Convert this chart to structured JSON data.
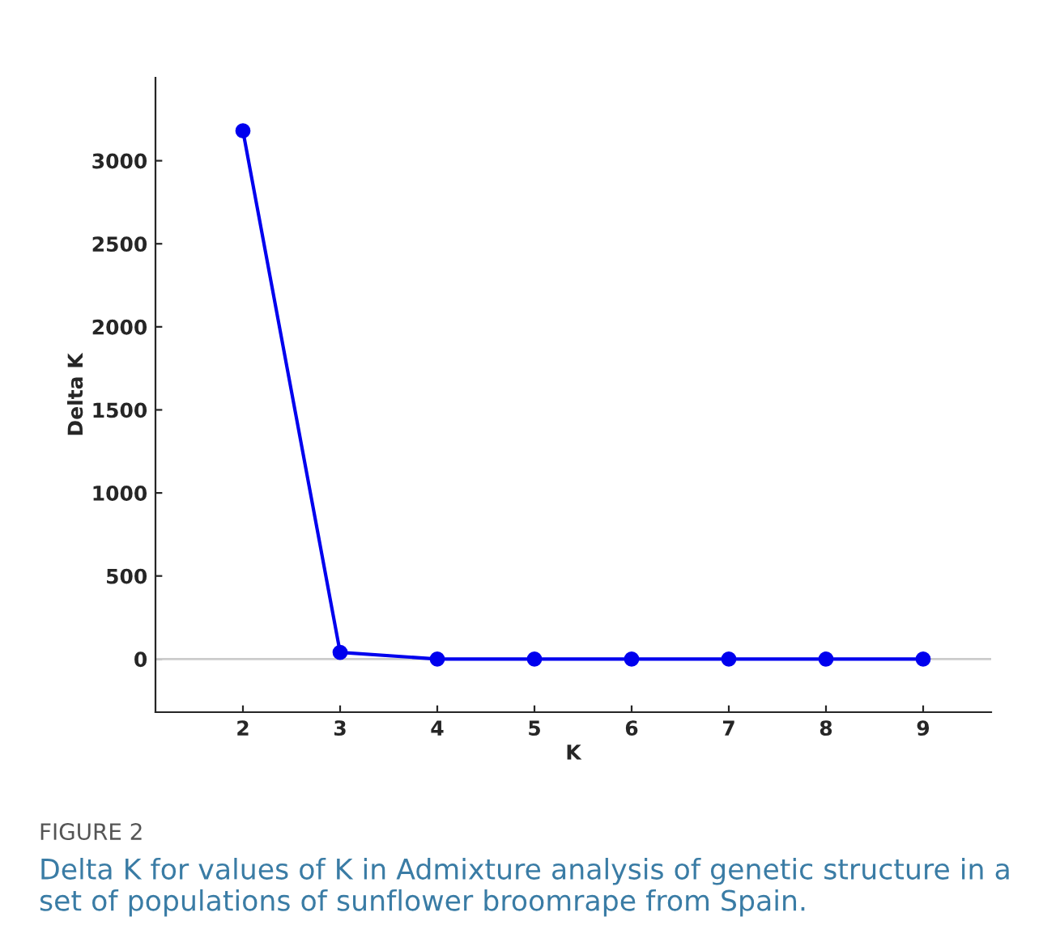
{
  "chart_data": {
    "type": "line",
    "xlabel": "K",
    "ylabel": "Delta K",
    "x": [
      2,
      3,
      4,
      5,
      6,
      7,
      8,
      9
    ],
    "series": [
      {
        "color": "#0000ee",
        "values": [
          3180,
          40,
          0,
          0,
          0,
          0,
          0,
          0
        ]
      }
    ],
    "xlim": [
      1.1,
      9.7
    ],
    "xticks": [
      2,
      3,
      4,
      5,
      6,
      7,
      8,
      9
    ],
    "ylim": [
      -320,
      3500
    ],
    "yticks": [
      0,
      500,
      1000,
      1500,
      2000,
      2500,
      3000
    ],
    "ref_lines": [
      {
        "axis": "y",
        "value": 0,
        "color": "#cccccc"
      }
    ],
    "marker": "circle",
    "line_style": "solid",
    "grid": false,
    "annotations": [
      "FIGURE 2",
      "Delta K for values of K in Admixture analysis of genetic structure in a set of populations of sunflower broomrape from Spain."
    ]
  }
}
